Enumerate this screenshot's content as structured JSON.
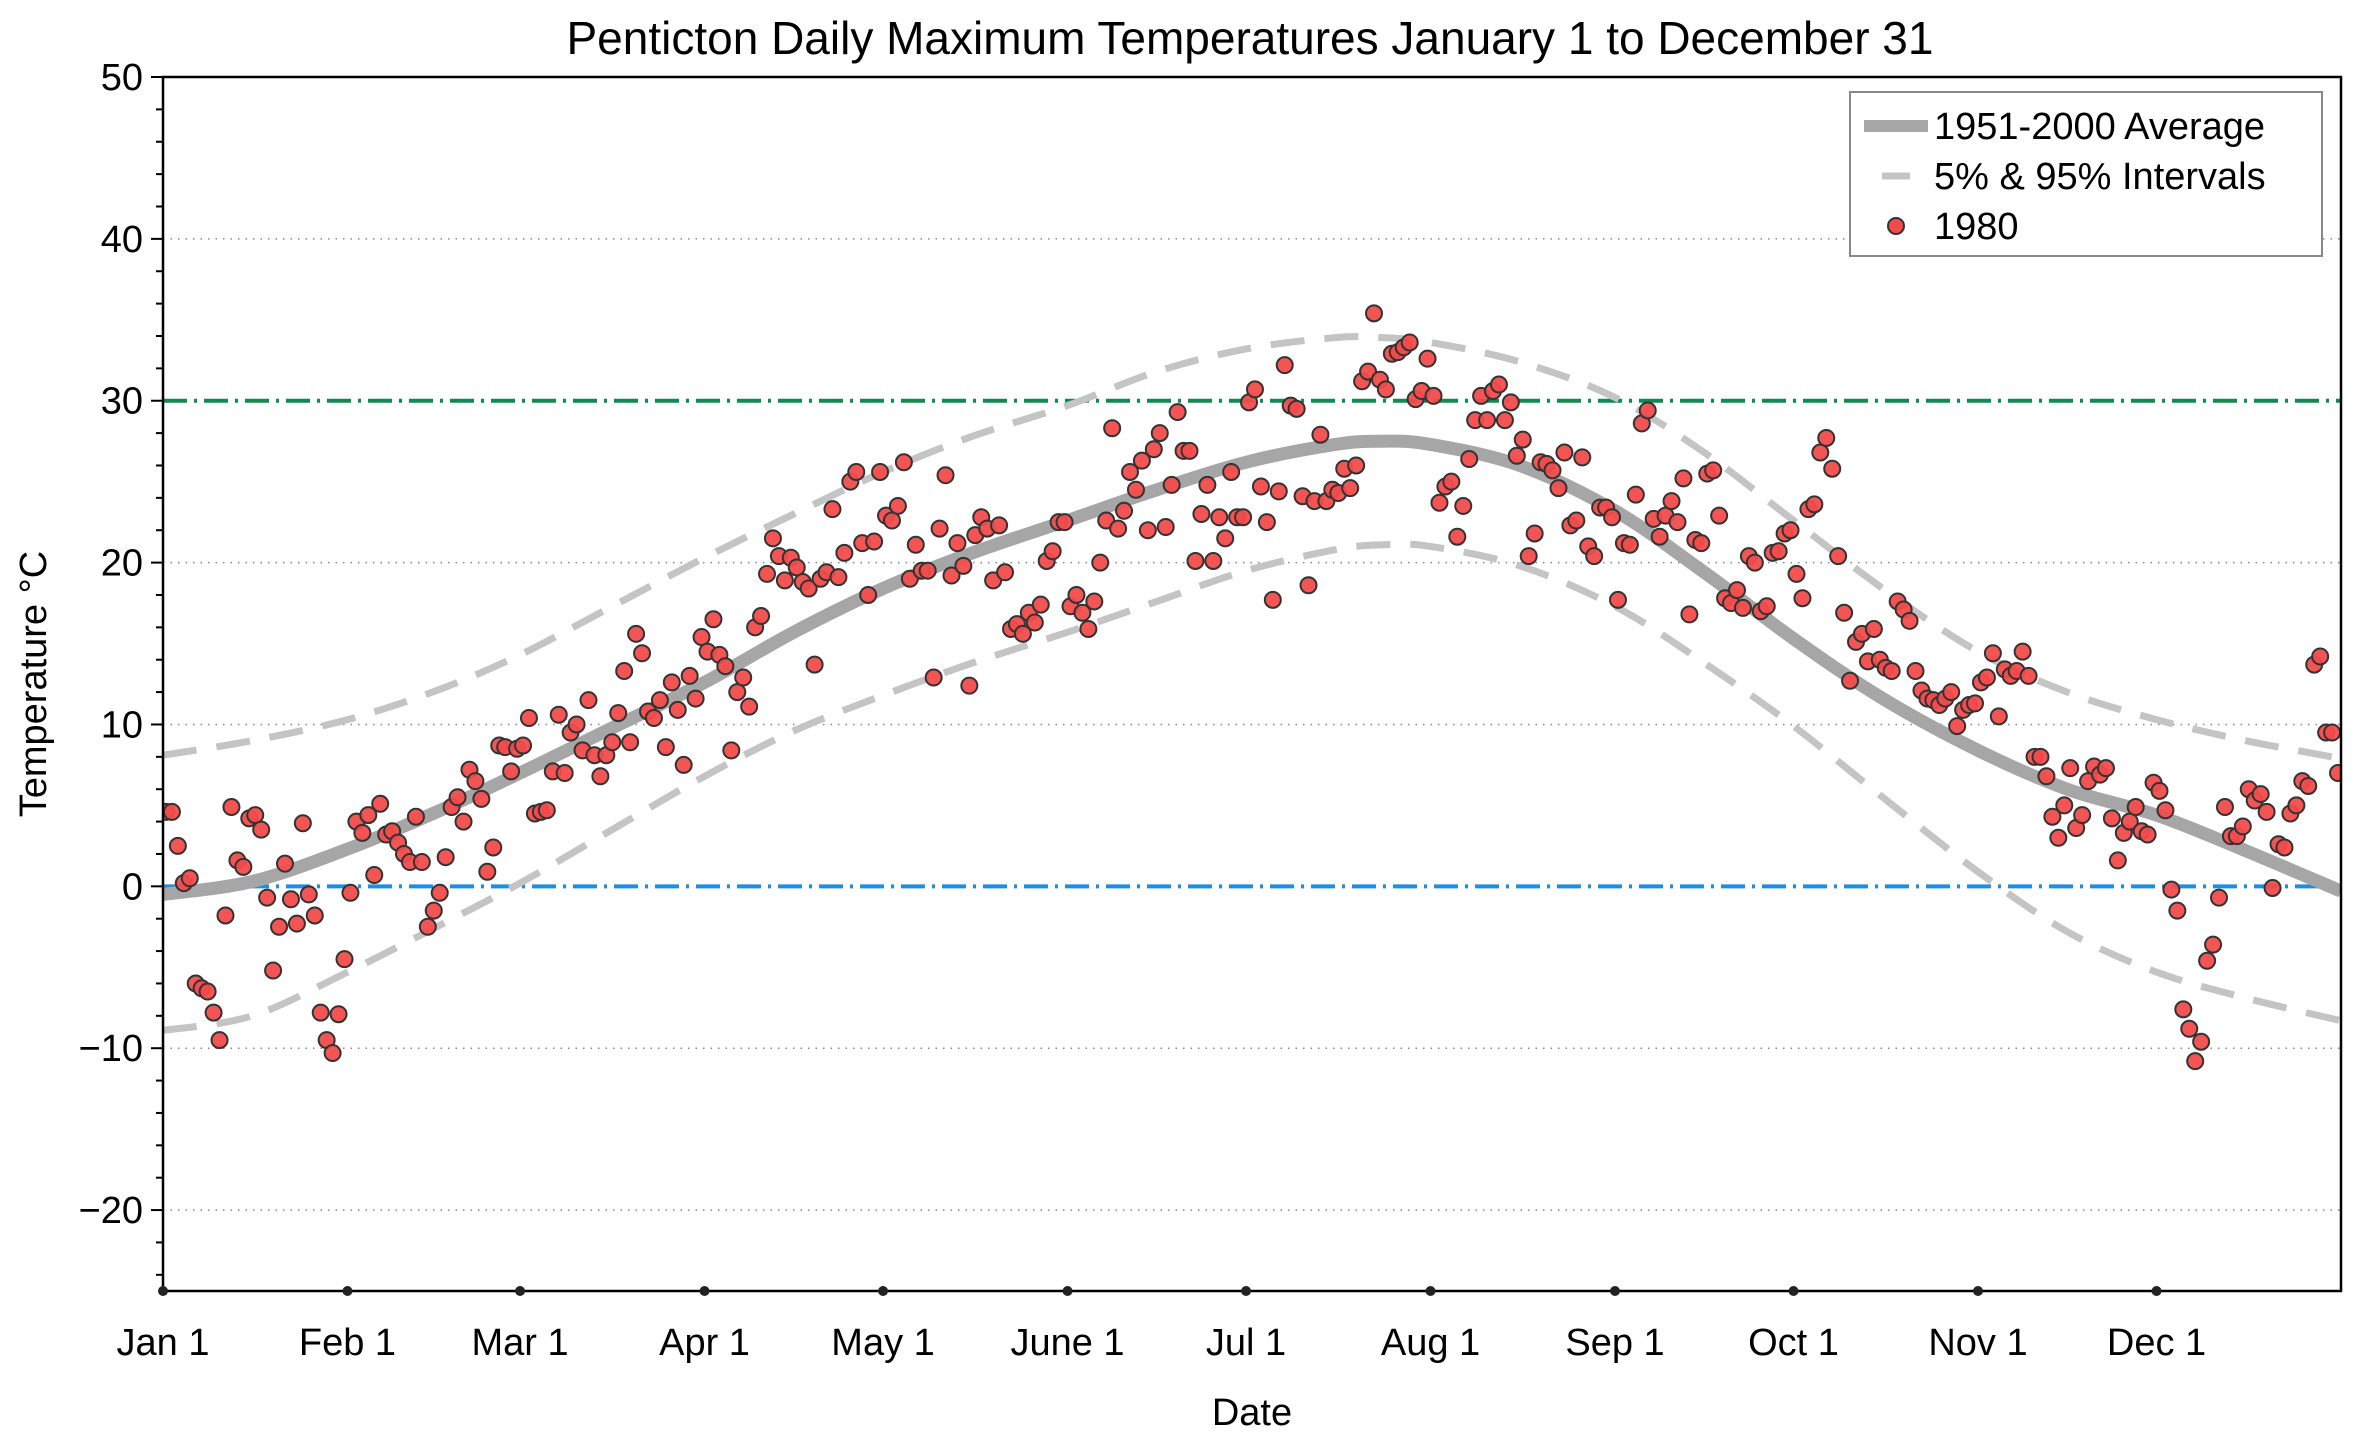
{
  "chart_data": {
    "type": "scatter",
    "title": "Penticton Daily Maximum Temperatures January 1 to December 31",
    "xlabel": "Date",
    "ylabel": "Temperature °C",
    "xlim": [
      0,
      366
    ],
    "ylim": [
      -25,
      50
    ],
    "y_major_ticks": [
      -20,
      -10,
      0,
      10,
      20,
      30,
      40,
      50
    ],
    "y_tick_labels": [
      "−20",
      "−10",
      "0",
      "10",
      "20",
      "30",
      "40",
      "50"
    ],
    "y_minor_tick_step": 2,
    "x_ticks": [
      0,
      31,
      60,
      91,
      121,
      152,
      182,
      213,
      244,
      274,
      305,
      335
    ],
    "x_tick_labels": [
      "Jan 1",
      "Feb 1",
      "Mar 1",
      "Apr 1",
      "May 1",
      "June 1",
      "Jul 1",
      "Aug 1",
      "Sep 1",
      "Oct 1",
      "Nov 1",
      "Dec 1"
    ],
    "grid": "horizontal dotted at major y ticks",
    "legend": {
      "placement": "top-right",
      "entries": [
        {
          "label": "1951-2000 Average",
          "style": "thick solid line",
          "color": "#a6a6a6"
        },
        {
          "label": "5% & 95% Intervals",
          "style": "dashed line",
          "color": "#c4c4c4"
        },
        {
          "label": "1980",
          "style": "marker circle",
          "color": "#f24b4b"
        }
      ]
    },
    "reference_lines": [
      {
        "name": "hot-threshold",
        "y": 30,
        "color": "#108a52",
        "style": "dash-dot"
      },
      {
        "name": "freezing-line",
        "y": 0,
        "color": "#1a8fe6",
        "style": "dash-dot"
      }
    ],
    "average_curve": {
      "name": "1951-2000 Average",
      "color": "#a6a6a6",
      "x": [
        0,
        15,
        31,
        46,
        60,
        75,
        91,
        106,
        121,
        136,
        152,
        167,
        182,
        197,
        205,
        213,
        228,
        244,
        259,
        274,
        289,
        305,
        320,
        335,
        350,
        366
      ],
      "y": [
        -0.5,
        0.3,
        2.3,
        4.6,
        7.0,
        9.7,
        12.6,
        15.7,
        18.4,
        20.6,
        22.6,
        24.5,
        26.2,
        27.3,
        27.5,
        27.3,
        26.0,
        23.2,
        19.4,
        15.3,
        11.6,
        8.4,
        6.0,
        4.4,
        2.2,
        -0.3
      ]
    },
    "p95_curve": {
      "name": "95% Interval",
      "color": "#c4c4c4",
      "x": [
        0,
        15,
        31,
        46,
        60,
        75,
        91,
        106,
        121,
        136,
        152,
        167,
        182,
        197,
        205,
        213,
        228,
        244,
        259,
        274,
        289,
        305,
        320,
        335,
        350,
        366
      ],
      "y": [
        8.1,
        9.0,
        10.3,
        12.1,
        14.3,
        17.2,
        20.3,
        23.0,
        25.6,
        27.8,
        29.7,
        31.8,
        33.2,
        33.9,
        33.9,
        33.6,
        32.4,
        30.2,
        26.8,
        22.6,
        18.4,
        14.5,
        12.0,
        10.3,
        9.0,
        7.9
      ]
    },
    "p5_curve": {
      "name": "5% Interval",
      "color": "#c4c4c4",
      "x": [
        0,
        15,
        31,
        46,
        60,
        75,
        91,
        106,
        121,
        136,
        152,
        167,
        182,
        197,
        205,
        213,
        228,
        244,
        259,
        274,
        289,
        305,
        320,
        335,
        350,
        366
      ],
      "y": [
        -8.9,
        -8.0,
        -5.3,
        -2.5,
        0.2,
        3.4,
        6.8,
        9.6,
        11.8,
        13.8,
        15.7,
        17.6,
        19.5,
        20.8,
        21.1,
        21.0,
        19.8,
        17.3,
        13.8,
        9.9,
        5.5,
        0.9,
        -2.8,
        -5.3,
        -6.9,
        -8.3
      ]
    },
    "series": [
      {
        "name": "1980",
        "color": "#f24b4b",
        "x": [
          0,
          1,
          2,
          3,
          4,
          5,
          6,
          7,
          8,
          9,
          10,
          11,
          12,
          13,
          14,
          15,
          16,
          17,
          18,
          19,
          20,
          21,
          22,
          23,
          24,
          25,
          26,
          27,
          28,
          29,
          30,
          31,
          32,
          33,
          34,
          35,
          36,
          37,
          38,
          39,
          40,
          41,
          42,
          43,
          44,
          45,
          46,
          47,
          48,
          49,
          50,
          51,
          52,
          53,
          54,
          55,
          56,
          57,
          58,
          59,
          60,
          61,
          62,
          63,
          64,
          65,
          66,
          67,
          68,
          69,
          70,
          71,
          72,
          73,
          74,
          75,
          76,
          77,
          78,
          79,
          80,
          81,
          82,
          83,
          84,
          85,
          86,
          87,
          88,
          89,
          90,
          91,
          92,
          93,
          94,
          95,
          96,
          97,
          98,
          99,
          100,
          101,
          102,
          103,
          104,
          105,
          106,
          107,
          108,
          109,
          110,
          111,
          112,
          113,
          114,
          115,
          116,
          117,
          118,
          119,
          120,
          121,
          122,
          123,
          124,
          125,
          126,
          127,
          128,
          129,
          130,
          131,
          132,
          133,
          134,
          135,
          136,
          137,
          138,
          139,
          140,
          141,
          142,
          143,
          144,
          145,
          146,
          147,
          148,
          149,
          150,
          151,
          152,
          153,
          154,
          155,
          156,
          157,
          158,
          159,
          160,
          161,
          162,
          163,
          164,
          165,
          166,
          167,
          168,
          169,
          170,
          171,
          172,
          173,
          174,
          175,
          176,
          177,
          178,
          179,
          180,
          181,
          182,
          183,
          184,
          185,
          186,
          187,
          188,
          189,
          190,
          191,
          192,
          193,
          194,
          195,
          196,
          197,
          198,
          199,
          200,
          201,
          202,
          203,
          204,
          205,
          206,
          207,
          208,
          209,
          210,
          211,
          212,
          213,
          214,
          215,
          216,
          217,
          218,
          219,
          220,
          221,
          222,
          223,
          224,
          225,
          226,
          227,
          228,
          229,
          230,
          231,
          232,
          233,
          234,
          235,
          236,
          237,
          238,
          239,
          240,
          241,
          242,
          243,
          244,
          245,
          246,
          247,
          248,
          249,
          250,
          251,
          252,
          253,
          254,
          255,
          256,
          257,
          258,
          259,
          260,
          261,
          262,
          263,
          264,
          265,
          266,
          267,
          268,
          269,
          270,
          271,
          272,
          273,
          274,
          275,
          276,
          277,
          278,
          279,
          280,
          281,
          282,
          283,
          284,
          285,
          286,
          287,
          288,
          289,
          290,
          291,
          292,
          293,
          294,
          295,
          296,
          297,
          298,
          299,
          300,
          301,
          302,
          303,
          304,
          305,
          306,
          307,
          308,
          309,
          310,
          311,
          312,
          313,
          314,
          315,
          316,
          317,
          318,
          319,
          320,
          321,
          322,
          323,
          324,
          325,
          326,
          327,
          328,
          329,
          330,
          331,
          332,
          333,
          334,
          335,
          336,
          337,
          338,
          339,
          340,
          341,
          342,
          343,
          344,
          345,
          346,
          347,
          348,
          349,
          350,
          351,
          352,
          353,
          354,
          355,
          356,
          357,
          358,
          359,
          360,
          361,
          362,
          363,
          364,
          365
        ],
        "y": [
          4.6,
          4.6,
          2.5,
          0.2,
          0.5,
          -6.0,
          -6.3,
          -6.5,
          -7.8,
          -9.5,
          -1.8,
          4.9,
          1.6,
          1.2,
          4.2,
          4.4,
          3.5,
          -0.7,
          -5.2,
          -2.5,
          1.4,
          -0.8,
          -2.3,
          3.9,
          -0.5,
          -1.8,
          -7.8,
          -9.5,
          -10.3,
          -7.9,
          -4.5,
          -0.4,
          4.0,
          3.3,
          4.4,
          0.7,
          5.1,
          3.2,
          3.4,
          2.7,
          2.0,
          1.5,
          4.3,
          1.5,
          -2.5,
          -1.5,
          -0.4,
          1.8,
          4.9,
          5.5,
          4.0,
          7.2,
          6.5,
          5.4,
          0.9,
          2.4,
          8.7,
          8.6,
          7.1,
          8.5,
          8.7,
          10.4,
          4.5,
          4.6,
          4.7,
          7.1,
          10.6,
          7.0,
          9.5,
          10.0,
          8.4,
          11.5,
          8.1,
          6.8,
          8.1,
          8.9,
          10.7,
          13.3,
          8.9,
          15.6,
          14.4,
          10.8,
          10.4,
          11.5,
          8.6,
          12.6,
          10.9,
          7.5,
          13.0,
          11.6,
          15.4,
          14.5,
          16.5,
          14.3,
          13.6,
          8.4,
          12.0,
          12.9,
          11.1,
          16.0,
          16.7,
          19.3,
          21.5,
          20.4,
          18.9,
          20.3,
          19.7,
          18.8,
          18.4,
          13.7,
          19.0,
          19.4,
          23.3,
          19.1,
          20.6,
          25.0,
          25.6,
          21.2,
          18.0,
          21.3,
          25.6,
          22.9,
          22.6,
          23.5,
          26.2,
          19.0,
          21.1,
          19.5,
          19.5,
          12.9,
          22.1,
          25.4,
          19.2,
          21.2,
          19.8,
          12.4,
          21.7,
          22.8,
          22.1,
          18.9,
          22.3,
          19.4,
          15.9,
          16.2,
          15.6,
          16.9,
          16.3,
          17.4,
          20.1,
          20.7,
          22.5,
          22.5,
          17.3,
          18.0,
          16.9,
          15.9,
          17.6,
          20.0,
          22.6,
          28.3,
          22.1,
          23.2,
          25.6,
          24.5,
          26.3,
          22.0,
          27.0,
          28.0,
          22.2,
          24.8,
          29.3,
          26.9,
          26.9,
          20.1,
          23.0,
          24.8,
          20.1,
          22.8,
          21.5,
          25.6,
          22.8,
          22.8,
          29.9,
          30.7,
          24.7,
          22.5,
          17.7,
          24.4,
          32.2,
          29.7,
          29.5,
          24.1,
          18.6,
          23.8,
          27.9,
          23.8,
          24.5,
          24.3,
          25.8,
          24.6,
          26.0,
          31.2,
          31.8,
          35.4,
          31.3,
          30.7,
          32.9,
          33.0,
          33.3,
          33.6,
          30.1,
          30.6,
          32.6,
          30.3,
          23.7,
          24.7,
          25.0,
          21.6,
          23.5,
          26.4,
          28.8,
          30.3,
          28.8,
          30.6,
          31.0,
          28.8,
          29.9,
          26.6,
          27.6,
          20.4,
          21.8,
          26.2,
          26.1,
          25.7,
          24.6,
          26.8,
          22.3,
          22.6,
          26.5,
          21.0,
          20.4,
          23.4,
          23.4,
          22.8,
          17.7,
          21.2,
          21.1,
          24.2,
          28.6,
          29.4,
          22.7,
          21.6,
          22.9,
          23.8,
          22.5,
          25.2,
          16.8,
          21.4,
          21.2,
          25.5,
          25.7,
          22.9,
          17.8,
          17.5,
          18.3,
          17.2,
          20.4,
          20.0,
          17.0,
          17.3,
          20.6,
          20.7,
          21.8,
          22.0,
          19.3,
          17.8,
          23.3,
          23.6,
          26.8,
          27.7,
          25.8,
          20.4,
          16.9,
          12.7,
          15.1,
          15.6,
          13.9,
          15.9,
          14.0,
          13.5,
          13.3,
          17.6,
          17.1,
          16.4,
          13.3,
          12.1,
          11.6,
          11.5,
          11.2,
          11.6,
          12.0,
          9.9,
          10.9,
          11.2,
          11.3,
          12.6,
          12.9,
          14.4,
          10.5,
          13.4,
          13.0,
          13.3,
          14.5,
          13.0,
          8.0,
          8.0,
          6.8,
          4.3,
          3.0,
          5.0,
          7.3,
          3.6,
          4.4,
          6.5,
          7.4,
          6.9,
          7.3,
          4.2,
          1.6,
          3.3,
          4.0,
          4.9,
          3.4,
          3.2,
          6.4,
          5.9,
          4.7,
          -0.2,
          -1.5,
          -7.6,
          -8.8,
          -10.8,
          -9.6,
          -4.6,
          -3.6,
          -0.7,
          4.9,
          3.1,
          3.1,
          3.7,
          6.0,
          5.3,
          5.7,
          4.6,
          -0.1,
          2.6,
          2.4,
          4.5,
          5.0,
          6.5,
          6.2,
          13.7,
          14.2,
          9.5,
          9.5,
          7.0
        ]
      }
    ]
  }
}
